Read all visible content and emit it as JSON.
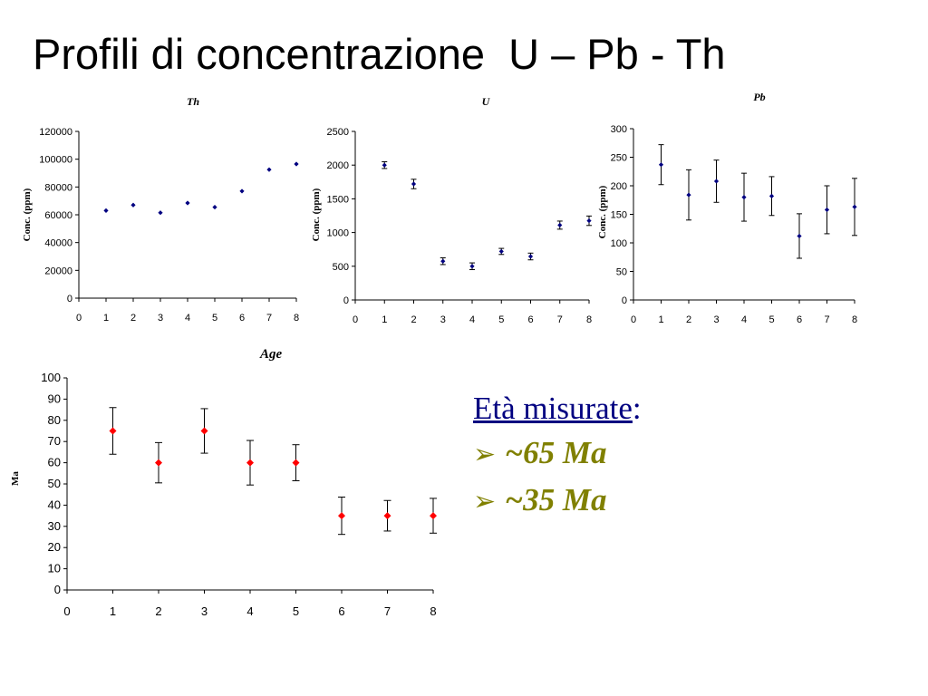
{
  "slide": {
    "title": "Profili di concentrazione  U – Pb - Th",
    "age_label": "Age",
    "ages": {
      "heading": "Età misurate",
      "heading_suffix": ":",
      "items": [
        "~65 Ma",
        "~35 Ma"
      ],
      "bullet_icon": "arrow-bullet-icon",
      "heading_color": "#000080",
      "item_color": "#808000"
    }
  },
  "chart_data": [
    {
      "id": "th",
      "type": "scatter",
      "title": "Th",
      "ylabel": "Conc. (ppm)",
      "xlim": [
        0,
        8
      ],
      "ylim": [
        0,
        120000
      ],
      "xticks": [
        "0",
        "1",
        "2",
        "3",
        "4",
        "5",
        "6",
        "7",
        "8"
      ],
      "yticks": [
        "0",
        "20000",
        "40000",
        "60000",
        "80000",
        "100000",
        "120000"
      ],
      "x": [
        1,
        2,
        3,
        4,
        5,
        6,
        7,
        8
      ],
      "y": [
        63000,
        67000,
        61500,
        68500,
        65500,
        77000,
        92500,
        96500
      ],
      "error": [
        0,
        0,
        0,
        0,
        0,
        0,
        0,
        0
      ],
      "marker_color": "#000080",
      "grid": false
    },
    {
      "id": "u",
      "type": "scatter",
      "title": "U",
      "ylabel": "Conc. (ppm)",
      "xlim": [
        0,
        8
      ],
      "ylim": [
        0,
        2500
      ],
      "xticks": [
        "0",
        "1",
        "2",
        "3",
        "4",
        "5",
        "6",
        "7",
        "8"
      ],
      "yticks": [
        "0",
        "500",
        "1000",
        "1500",
        "2000",
        "2500"
      ],
      "x": [
        1,
        2,
        3,
        4,
        5,
        6,
        7,
        8
      ],
      "y": [
        2000,
        1720,
        575,
        500,
        720,
        645,
        1110,
        1175
      ],
      "error": [
        50,
        70,
        50,
        50,
        45,
        50,
        60,
        70
      ],
      "marker_color": "#000080",
      "grid": false
    },
    {
      "id": "pb",
      "type": "scatter",
      "title": "Pb",
      "ylabel": "Conc. (ppm)",
      "xlim": [
        0,
        8
      ],
      "ylim": [
        0,
        300
      ],
      "xticks": [
        "0",
        "1",
        "2",
        "3",
        "4",
        "5",
        "6",
        "7",
        "8"
      ],
      "yticks": [
        "0",
        "50",
        "100",
        "150",
        "200",
        "250",
        "300"
      ],
      "x": [
        1,
        2,
        3,
        4,
        5,
        6,
        7,
        8
      ],
      "y": [
        237,
        184,
        208,
        180,
        182,
        112,
        158,
        163
      ],
      "error": [
        35,
        44,
        37,
        42,
        34,
        39,
        42,
        50
      ],
      "marker_color": "#000080",
      "grid": false
    },
    {
      "id": "ma",
      "type": "scatter",
      "title": "",
      "ylabel": "Ma",
      "xlim": [
        0,
        8
      ],
      "ylim": [
        0,
        100
      ],
      "xticks": [
        "0",
        "1",
        "2",
        "3",
        "4",
        "5",
        "6",
        "7",
        "8"
      ],
      "yticks": [
        "0",
        "10",
        "20",
        "30",
        "40",
        "50",
        "60",
        "70",
        "80",
        "90",
        "100"
      ],
      "x": [
        1,
        2,
        3,
        4,
        5,
        6,
        7,
        8
      ],
      "y": [
        75,
        60,
        75,
        60,
        60,
        35,
        35,
        35
      ],
      "error": [
        11,
        9.5,
        10.5,
        10.5,
        8.5,
        8.8,
        7.2,
        8.2
      ],
      "marker_color": "#ff0000",
      "grid": false
    }
  ]
}
